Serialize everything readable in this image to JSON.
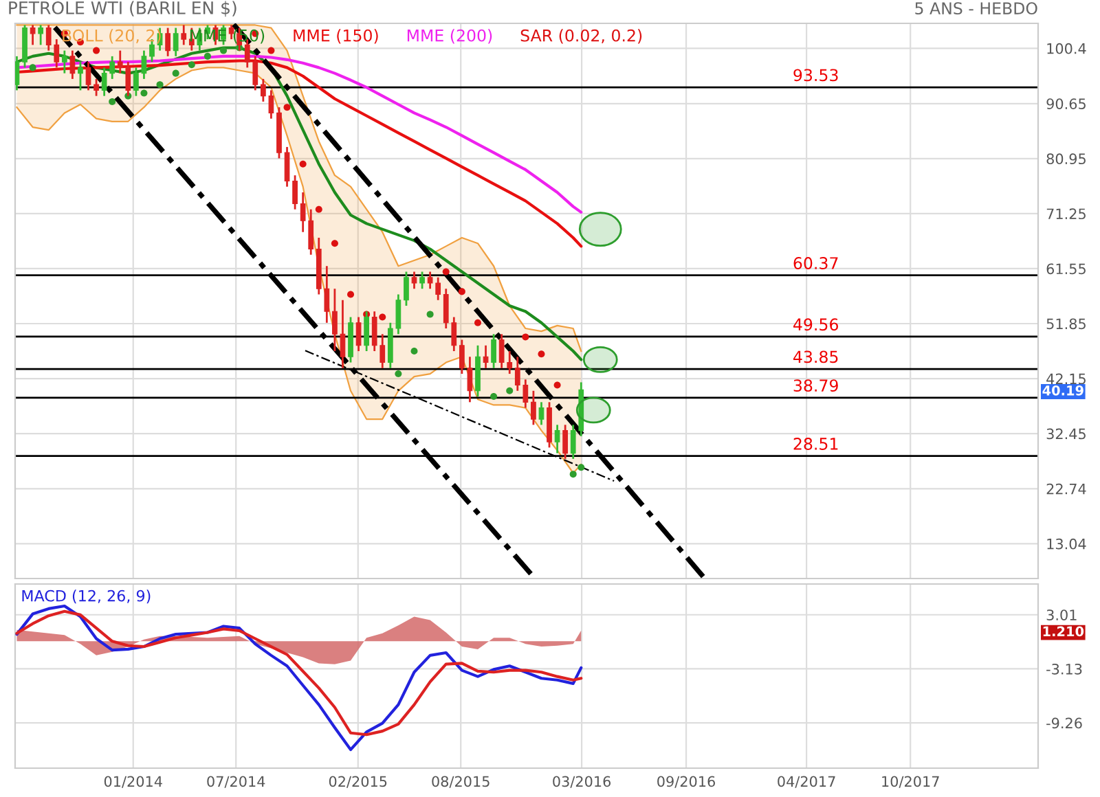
{
  "chart_data": [
    {
      "type": "candlestick",
      "title": "PETROLE WTI (BARIL EN $)",
      "subtitle": "5 ANS - HEBDO",
      "x": [
        "2013-06-10",
        "2013-06-24",
        "2013-07-08",
        "2013-07-22",
        "2013-08-05",
        "2013-08-19",
        "2013-09-02",
        "2013-09-16",
        "2013-09-30",
        "2013-10-14",
        "2013-10-28",
        "2013-11-11",
        "2013-11-25",
        "2013-12-09",
        "2013-12-23",
        "2014-01-06",
        "2014-01-20",
        "2014-02-03",
        "2014-02-17",
        "2014-03-03",
        "2014-03-17",
        "2014-03-31",
        "2014-04-14",
        "2014-04-28",
        "2014-05-12",
        "2014-05-26",
        "2014-06-09",
        "2014-06-23",
        "2014-07-07",
        "2014-07-21",
        "2014-08-04",
        "2014-08-18",
        "2014-09-01",
        "2014-09-15",
        "2014-09-29",
        "2014-10-13",
        "2014-10-27",
        "2014-11-10",
        "2014-11-24",
        "2014-12-08",
        "2014-12-22",
        "2015-01-05",
        "2015-01-19",
        "2015-02-02",
        "2015-02-16",
        "2015-03-02",
        "2015-03-16",
        "2015-03-30",
        "2015-04-13",
        "2015-04-27",
        "2015-05-11",
        "2015-05-25",
        "2015-06-08",
        "2015-06-22",
        "2015-07-06",
        "2015-07-20",
        "2015-08-03",
        "2015-08-17",
        "2015-08-31",
        "2015-09-14",
        "2015-09-28",
        "2015-10-12",
        "2015-10-26",
        "2015-11-09",
        "2015-11-23",
        "2015-12-07",
        "2015-12-21",
        "2016-01-04",
        "2016-01-18",
        "2016-02-01",
        "2016-02-15",
        "2016-02-29"
      ],
      "ohlc": [
        [
          94,
          99,
          93,
          98
        ],
        [
          98,
          104.5,
          97,
          104
        ],
        [
          104,
          104.5,
          101,
          103
        ],
        [
          103,
          104.5,
          101,
          104
        ],
        [
          104,
          104.5,
          100,
          101
        ],
        [
          101,
          102,
          97,
          98
        ],
        [
          98,
          100,
          96,
          99
        ],
        [
          99,
          100,
          95,
          96
        ],
        [
          96,
          98,
          93,
          97
        ],
        [
          97,
          98,
          93,
          94
        ],
        [
          94,
          95,
          92,
          93
        ],
        [
          93,
          97,
          92,
          96
        ],
        [
          96,
          99,
          95,
          98
        ],
        [
          98,
          100,
          96,
          97
        ],
        [
          97,
          98,
          92,
          93
        ],
        [
          93,
          97,
          92,
          96
        ],
        [
          96,
          100,
          95,
          99
        ],
        [
          99,
          102,
          98,
          101
        ],
        [
          101,
          104,
          100,
          103
        ],
        [
          103,
          104,
          99,
          100
        ],
        [
          100,
          104,
          99,
          103
        ],
        [
          103,
          104.5,
          101,
          102
        ],
        [
          102,
          104,
          100,
          101
        ],
        [
          101,
          104,
          100,
          103
        ],
        [
          103,
          104.5,
          102,
          104
        ],
        [
          104,
          104.5,
          101,
          102
        ],
        [
          102,
          104.5,
          101,
          104
        ],
        [
          104,
          104.5,
          102,
          103
        ],
        [
          103,
          104,
          100,
          101
        ],
        [
          101,
          102,
          97,
          98
        ],
        [
          98,
          99,
          93,
          94
        ],
        [
          94,
          95,
          91,
          92
        ],
        [
          92,
          93,
          88,
          89
        ],
        [
          89,
          90,
          81,
          82
        ],
        [
          82,
          83,
          76,
          77
        ],
        [
          77,
          78,
          72,
          73
        ],
        [
          73,
          75,
          68,
          70
        ],
        [
          70,
          72,
          64,
          65
        ],
        [
          65,
          67,
          57,
          58
        ],
        [
          58,
          62,
          52,
          54
        ],
        [
          54,
          58,
          47,
          50
        ],
        [
          50,
          56,
          44,
          46
        ],
        [
          46,
          53,
          45,
          52
        ],
        [
          52,
          53,
          47,
          48
        ],
        [
          48,
          54,
          47,
          53
        ],
        [
          53,
          54,
          47,
          48
        ],
        [
          48,
          50,
          44,
          45
        ],
        [
          45,
          52,
          44,
          51
        ],
        [
          51,
          57,
          50,
          56
        ],
        [
          56,
          61,
          55,
          60
        ],
        [
          60,
          61,
          58,
          59
        ],
        [
          59,
          61,
          58,
          60
        ],
        [
          60,
          61,
          58,
          59
        ],
        [
          59,
          60,
          56,
          57
        ],
        [
          57,
          58,
          51,
          52
        ],
        [
          52,
          53,
          47,
          48
        ],
        [
          48,
          49,
          43,
          44
        ],
        [
          44,
          46,
          38,
          40
        ],
        [
          40,
          48,
          39,
          46
        ],
        [
          46,
          48,
          44,
          45
        ],
        [
          45,
          50,
          44,
          49
        ],
        [
          49,
          50,
          44,
          45
        ],
        [
          45,
          47,
          43,
          44
        ],
        [
          44,
          46,
          40,
          41
        ],
        [
          41,
          42,
          37,
          38
        ],
        [
          38,
          40,
          34,
          35
        ],
        [
          35,
          38,
          34,
          37
        ],
        [
          37,
          38,
          30,
          31
        ],
        [
          31,
          34,
          29,
          33
        ],
        [
          33,
          34,
          28,
          29
        ],
        [
          29,
          34,
          28,
          33
        ],
        [
          33,
          41.5,
          32,
          40.19
        ]
      ],
      "colors": [
        "#33bb33",
        "#33bb33",
        "#dd2222",
        "#33bb33",
        "#dd2222",
        "#dd2222",
        "#33bb33",
        "#dd2222",
        "#33bb33",
        "#dd2222",
        "#dd2222",
        "#33bb33",
        "#33bb33",
        "#dd2222",
        "#dd2222",
        "#33bb33",
        "#33bb33",
        "#33bb33",
        "#33bb33",
        "#dd2222",
        "#33bb33",
        "#dd2222",
        "#dd2222",
        "#33bb33",
        "#33bb33",
        "#dd2222",
        "#33bb33",
        "#dd2222",
        "#dd2222",
        "#dd2222",
        "#dd2222",
        "#dd2222",
        "#dd2222",
        "#dd2222",
        "#dd2222",
        "#dd2222",
        "#dd2222",
        "#dd2222",
        "#dd2222",
        "#dd2222",
        "#dd2222",
        "#dd2222",
        "#33bb33",
        "#dd2222",
        "#33bb33",
        "#dd2222",
        "#dd2222",
        "#33bb33",
        "#33bb33",
        "#33bb33",
        "#dd2222",
        "#33bb33",
        "#dd2222",
        "#dd2222",
        "#dd2222",
        "#dd2222",
        "#dd2222",
        "#dd2222",
        "#33bb33",
        "#dd2222",
        "#33bb33",
        "#dd2222",
        "#dd2222",
        "#dd2222",
        "#dd2222",
        "#dd2222",
        "#33bb33",
        "#dd2222",
        "#33bb33",
        "#dd2222",
        "#33bb33",
        "#33bb33"
      ],
      "series": [
        {
          "name": "BOLL (20, 2)",
          "type": "line",
          "color": "#f0a040",
          "x": [
            "2013-06-10",
            "2013-07-08",
            "2013-08-05",
            "2013-09-02",
            "2013-09-30",
            "2013-10-28",
            "2013-11-25",
            "2013-12-23",
            "2014-01-20",
            "2014-02-17",
            "2014-03-17",
            "2014-04-14",
            "2014-05-12",
            "2014-06-09",
            "2014-07-07",
            "2014-08-04",
            "2014-09-01",
            "2014-09-29",
            "2014-10-27",
            "2014-11-24",
            "2014-12-22",
            "2015-01-19",
            "2015-02-16",
            "2015-03-16",
            "2015-04-13",
            "2015-05-11",
            "2015-06-08",
            "2015-07-06",
            "2015-08-03",
            "2015-08-31",
            "2015-09-28",
            "2015-10-26",
            "2015-11-23",
            "2015-12-21",
            "2016-01-18",
            "2016-02-15",
            "2016-02-29"
          ],
          "values": [
            104.5,
            104.5,
            104.5,
            104.5,
            104.5,
            104.5,
            104.5,
            104.5,
            104.5,
            104.5,
            104.5,
            104.5,
            104.5,
            104.5,
            104.5,
            104.5,
            104,
            100,
            92,
            84,
            78,
            76,
            72,
            68,
            62,
            63,
            64,
            65.5,
            67,
            66,
            62,
            55,
            51,
            50.5,
            51.5,
            51,
            47
          ]
        },
        {
          "type": "line",
          "color": "#f0a040",
          "x": [
            "2013-06-10",
            "2013-07-08",
            "2013-08-05",
            "2013-09-02",
            "2013-09-30",
            "2013-10-28",
            "2013-11-25",
            "2013-12-23",
            "2014-01-20",
            "2014-02-17",
            "2014-03-17",
            "2014-04-14",
            "2014-05-12",
            "2014-06-09",
            "2014-07-07",
            "2014-08-04",
            "2014-09-01",
            "2014-09-29",
            "2014-10-27",
            "2014-11-24",
            "2014-12-22",
            "2015-01-19",
            "2015-02-16",
            "2015-03-16",
            "2015-04-13",
            "2015-05-11",
            "2015-06-08",
            "2015-07-06",
            "2015-08-03",
            "2015-08-31",
            "2015-09-28",
            "2015-10-26",
            "2015-11-23",
            "2015-12-21",
            "2016-01-18",
            "2016-02-15",
            "2016-02-29"
          ],
          "values": [
            90,
            86.5,
            86,
            89,
            90.5,
            88,
            87.5,
            87.5,
            90,
            93,
            95,
            96.5,
            97,
            97,
            96.5,
            96,
            93.5,
            85,
            76,
            62,
            50,
            40,
            35,
            35,
            40,
            42.5,
            43,
            45,
            46,
            38.5,
            37.5,
            37.5,
            37,
            33,
            29.5,
            25.5,
            27
          ]
        },
        {
          "name": "MME (50)",
          "type": "line",
          "color": "#1e8c1e",
          "x": [
            "2013-06-10",
            "2013-07-08",
            "2013-08-05",
            "2013-09-02",
            "2013-09-30",
            "2013-10-28",
            "2013-11-25",
            "2013-12-23",
            "2014-01-20",
            "2014-02-17",
            "2014-03-17",
            "2014-04-14",
            "2014-05-12",
            "2014-06-09",
            "2014-07-07",
            "2014-08-04",
            "2014-09-01",
            "2014-09-29",
            "2014-10-27",
            "2014-11-24",
            "2014-12-22",
            "2015-01-19",
            "2015-02-16",
            "2015-03-16",
            "2015-04-13",
            "2015-05-11",
            "2015-06-08",
            "2015-07-06",
            "2015-08-03",
            "2015-08-31",
            "2015-09-28",
            "2015-10-26",
            "2015-11-23",
            "2015-12-21",
            "2016-01-18",
            "2016-02-15",
            "2016-02-29"
          ],
          "values": [
            98,
            99,
            99.5,
            99,
            98,
            97,
            96.5,
            96,
            96.5,
            97.5,
            98.5,
            99.5,
            100,
            100.5,
            100.5,
            99.5,
            97,
            92,
            86,
            80,
            75,
            71,
            69.5,
            68.5,
            67.5,
            66.5,
            65,
            63,
            61,
            59,
            57,
            55,
            54,
            52,
            49.5,
            47,
            45.5
          ]
        },
        {
          "name": "MME (150)",
          "type": "line",
          "color": "#e81010",
          "x": [
            "2013-06-10",
            "2013-07-08",
            "2013-08-05",
            "2013-09-02",
            "2013-09-30",
            "2013-10-28",
            "2013-11-25",
            "2013-12-23",
            "2014-01-20",
            "2014-02-17",
            "2014-03-17",
            "2014-04-14",
            "2014-05-12",
            "2014-06-09",
            "2014-07-07",
            "2014-08-04",
            "2014-09-01",
            "2014-09-29",
            "2014-10-27",
            "2014-11-24",
            "2014-12-22",
            "2015-01-19",
            "2015-02-16",
            "2015-03-16",
            "2015-04-13",
            "2015-05-11",
            "2015-06-08",
            "2015-07-06",
            "2015-08-03",
            "2015-08-31",
            "2015-09-28",
            "2015-10-26",
            "2015-11-23",
            "2015-12-21",
            "2016-01-18",
            "2016-02-15",
            "2016-02-29"
          ],
          "values": [
            96.2,
            96.4,
            96.6,
            96.8,
            96.9,
            97,
            97.1,
            97.2,
            97.3,
            97.4,
            97.6,
            97.8,
            98,
            98.1,
            98.2,
            98.2,
            97.8,
            97,
            95.5,
            93.5,
            91.5,
            90,
            88.5,
            87,
            85.5,
            84,
            82.5,
            81,
            79.5,
            78,
            76.5,
            75,
            73.5,
            71.5,
            69.5,
            67,
            65.5
          ]
        },
        {
          "name": "MME (200)",
          "type": "line",
          "color": "#ee22ee",
          "x": [
            "2013-06-10",
            "2013-07-08",
            "2013-08-05",
            "2013-09-02",
            "2013-09-30",
            "2013-10-28",
            "2013-11-25",
            "2013-12-23",
            "2014-01-20",
            "2014-02-17",
            "2014-03-17",
            "2014-04-14",
            "2014-05-12",
            "2014-06-09",
            "2014-07-07",
            "2014-08-04",
            "2014-09-01",
            "2014-09-29",
            "2014-10-27",
            "2014-11-24",
            "2014-12-22",
            "2015-01-19",
            "2015-02-16",
            "2015-03-16",
            "2015-04-13",
            "2015-05-11",
            "2015-06-08",
            "2015-07-06",
            "2015-08-03",
            "2015-08-31",
            "2015-09-28",
            "2015-10-26",
            "2015-11-23",
            "2015-12-21",
            "2016-01-18",
            "2016-02-15",
            "2016-02-29"
          ],
          "values": [
            97,
            97.2,
            97.4,
            97.6,
            97.8,
            97.9,
            98,
            98,
            98.1,
            98.2,
            98.4,
            98.6,
            98.8,
            99,
            99,
            99,
            98.8,
            98.4,
            97.8,
            97,
            96,
            94.8,
            93.5,
            92,
            90.5,
            89,
            87.8,
            86.5,
            85,
            83.5,
            82,
            80.5,
            79,
            77,
            75,
            72.5,
            71.5
          ]
        },
        {
          "name": "SAR (0.02, 0.2)",
          "type": "scatter",
          "color": "#dd1111",
          "marker": "circle",
          "x": [
            "2013-07-08",
            "2013-09-02",
            "2013-09-30",
            "2013-10-28",
            "2013-11-25",
            "2013-12-23",
            "2014-01-20",
            "2014-02-17",
            "2014-03-17",
            "2014-04-14",
            "2014-05-12",
            "2014-06-09",
            "2014-07-07",
            "2014-08-04",
            "2014-09-01",
            "2014-09-29",
            "2014-10-27",
            "2014-11-24",
            "2014-12-22",
            "2015-01-19",
            "2015-02-16",
            "2015-03-16",
            "2015-04-13",
            "2015-05-11",
            "2015-06-08",
            "2015-07-06",
            "2015-08-03",
            "2015-08-31",
            "2015-09-28",
            "2015-10-26",
            "2015-11-23",
            "2015-12-21",
            "2016-01-18",
            "2016-02-15",
            "2016-02-29"
          ],
          "values": [
            97,
            103,
            101.5,
            100,
            91,
            92,
            92.5,
            94,
            96,
            97.5,
            99,
            100,
            100.5,
            103,
            100,
            90,
            80,
            72,
            66,
            57,
            53.5,
            53,
            43,
            47,
            53.5,
            61,
            57.5,
            52,
            39,
            40,
            49.5,
            46.5,
            41,
            25.3,
            26.5
          ],
          "colors": [
            "#2e9e2e",
            "#dd1111",
            "#dd1111",
            "#dd1111",
            "#2e9e2e",
            "#2e9e2e",
            "#2e9e2e",
            "#2e9e2e",
            "#2e9e2e",
            "#2e9e2e",
            "#2e9e2e",
            "#2e9e2e",
            "#2e9e2e",
            "#dd1111",
            "#dd1111",
            "#dd1111",
            "#dd1111",
            "#dd1111",
            "#dd1111",
            "#dd1111",
            "#dd1111",
            "#dd1111",
            "#2e9e2e",
            "#2e9e2e",
            "#2e9e2e",
            "#dd1111",
            "#dd1111",
            "#dd1111",
            "#2e9e2e",
            "#2e9e2e",
            "#dd1111",
            "#dd1111",
            "#dd1111",
            "#2e9e2e",
            "#2e9e2e"
          ]
        },
        {
          "type": "line",
          "color": "#000000",
          "line_style": "dashed",
          "x": [
            "2013-08-16",
            "2015-12-07"
          ],
          "values": [
            104.1,
            7.2
          ]
        },
        {
          "type": "line",
          "color": "#000000",
          "line_style": "dashed",
          "x": [
            "2014-06-27",
            "2016-10-03"
          ],
          "values": [
            104.6,
            7.0
          ]
        },
        {
          "type": "line",
          "color": "#000000",
          "line_style": "dotted",
          "x": [
            "2014-10-31",
            "2016-04-27"
          ],
          "values": [
            47.1,
            24.1
          ]
        }
      ],
      "ref_lines": [
        {
          "axis": "y",
          "value": 93.53,
          "label": "93.53",
          "color": "#000000"
        },
        {
          "axis": "y",
          "value": 60.37,
          "label": "60.37",
          "color": "#000000"
        },
        {
          "axis": "y",
          "value": 49.56,
          "label": "49.56",
          "color": "#000000"
        },
        {
          "axis": "y",
          "value": 43.85,
          "label": "43.85",
          "color": "#000000"
        },
        {
          "axis": "y",
          "value": 38.79,
          "label": "38.79",
          "color": "#000000"
        },
        {
          "axis": "y",
          "value": 28.51,
          "label": "28.51",
          "color": "#000000"
        }
      ],
      "annotations": [
        "40.19"
      ],
      "xlim": [
        "2013-06-07",
        "2018-05-14"
      ],
      "xticks": [
        {
          "value": "2014-01",
          "label": null
        },
        {
          "value": "2014-07",
          "label": null
        },
        {
          "value": "2015-02",
          "label": null
        },
        {
          "value": "2015-08",
          "label": null
        },
        {
          "value": "2016-03",
          "label": null
        },
        {
          "value": "2016-09",
          "label": null
        },
        {
          "value": "2017-04",
          "label": null
        },
        {
          "value": "2017-10",
          "label": null
        }
      ],
      "ylim": [
        6.9,
        104.8
      ],
      "yticks": [
        13.04,
        22.74,
        32.45,
        42.15,
        51.85,
        61.55,
        71.25,
        80.95,
        90.65,
        100.4
      ],
      "tick_labels": "y",
      "grid": true,
      "legend": "top left"
    },
    {
      "type": "line",
      "title": "MACD (12, 26, 9)",
      "series": [
        {
          "type": "area",
          "color": "#d46a6a",
          "x": [
            "2013-06-10",
            "2013-07-08",
            "2013-08-05",
            "2013-09-02",
            "2013-09-30",
            "2013-10-28",
            "2013-11-25",
            "2013-12-23",
            "2014-01-20",
            "2014-02-17",
            "2014-03-17",
            "2014-04-14",
            "2014-05-12",
            "2014-06-09",
            "2014-07-07",
            "2014-08-04",
            "2014-09-01",
            "2014-09-29",
            "2014-10-27",
            "2014-11-24",
            "2014-12-22",
            "2015-01-19",
            "2015-02-16",
            "2015-03-16",
            "2015-04-13",
            "2015-05-11",
            "2015-06-08",
            "2015-07-06",
            "2015-08-03",
            "2015-08-31",
            "2015-09-28",
            "2015-10-26",
            "2015-11-23",
            "2015-12-21",
            "2016-01-18",
            "2016-02-15",
            "2016-02-29"
          ],
          "values": [
            1.3,
            1.1,
            0.9,
            0.7,
            -0.3,
            -1.6,
            -1.2,
            -0.6,
            0.2,
            0.6,
            0.6,
            0.5,
            0.4,
            0.5,
            0.6,
            -0.3,
            -0.8,
            -1.3,
            -1.8,
            -2.5,
            -2.6,
            -2.2,
            0.4,
            0.9,
            1.8,
            2.8,
            2.4,
            1.0,
            -0.6,
            -0.9,
            0.4,
            0.4,
            -0.3,
            -0.6,
            -0.5,
            -0.3,
            1.21
          ]
        },
        {
          "type": "line",
          "color": "#2222dd",
          "x": [
            "2013-06-10",
            "2013-07-08",
            "2013-08-05",
            "2013-09-02",
            "2013-09-30",
            "2013-10-28",
            "2013-11-25",
            "2013-12-23",
            "2014-01-20",
            "2014-02-17",
            "2014-03-17",
            "2014-04-14",
            "2014-05-12",
            "2014-06-09",
            "2014-07-07",
            "2014-08-04",
            "2014-09-01",
            "2014-09-29",
            "2014-10-27",
            "2014-11-24",
            "2014-12-22",
            "2015-01-19",
            "2015-02-16",
            "2015-03-16",
            "2015-04-13",
            "2015-05-11",
            "2015-06-08",
            "2015-07-06",
            "2015-08-03",
            "2015-08-31",
            "2015-09-28",
            "2015-10-26",
            "2015-11-23",
            "2015-12-21",
            "2016-01-18",
            "2016-02-15",
            "2016-02-29"
          ],
          "values": [
            0.8,
            3.1,
            3.7,
            4.0,
            2.8,
            0.3,
            -1.0,
            -0.9,
            -0.6,
            0.3,
            0.8,
            0.9,
            1.0,
            1.7,
            1.5,
            -0.3,
            -1.6,
            -2.8,
            -5.0,
            -7.2,
            -9.8,
            -12.3,
            -10.3,
            -9.3,
            -7.2,
            -3.5,
            -1.6,
            -1.3,
            -3.3,
            -4.0,
            -3.2,
            -2.8,
            -3.5,
            -4.2,
            -4.4,
            -4.8,
            -3.0
          ]
        },
        {
          "type": "line",
          "color": "#dd2222",
          "x": [
            "2013-06-10",
            "2013-07-08",
            "2013-08-05",
            "2013-09-02",
            "2013-09-30",
            "2013-10-28",
            "2013-11-25",
            "2013-12-23",
            "2014-01-20",
            "2014-02-17",
            "2014-03-17",
            "2014-04-14",
            "2014-05-12",
            "2014-06-09",
            "2014-07-07",
            "2014-08-04",
            "2014-09-01",
            "2014-09-29",
            "2014-10-27",
            "2014-11-24",
            "2014-12-22",
            "2015-01-19",
            "2015-02-16",
            "2015-03-16",
            "2015-04-13",
            "2015-05-11",
            "2015-06-08",
            "2015-07-06",
            "2015-08-03",
            "2015-08-31",
            "2015-09-28",
            "2015-10-26",
            "2015-11-23",
            "2015-12-21",
            "2016-01-18",
            "2016-02-15",
            "2016-02-29"
          ],
          "values": [
            0.9,
            2.0,
            2.9,
            3.4,
            3.0,
            1.5,
            0.0,
            -0.5,
            -0.6,
            -0.1,
            0.4,
            0.7,
            1.0,
            1.4,
            1.2,
            0.3,
            -0.6,
            -1.5,
            -3.4,
            -5.3,
            -7.5,
            -10.4,
            -10.6,
            -10.2,
            -9.4,
            -7.2,
            -4.6,
            -2.6,
            -2.5,
            -3.4,
            -3.5,
            -3.3,
            -3.3,
            -3.5,
            -4.0,
            -4.4,
            -4.2
          ]
        }
      ],
      "annotations": [
        "1.210"
      ],
      "xlim": [
        "2013-06-07",
        "2018-05-14"
      ],
      "xticks": [
        {
          "value": "2014-01",
          "label": "01/2014"
        },
        {
          "value": "2014-07",
          "label": "07/2014"
        },
        {
          "value": "2015-02",
          "label": "02/2015"
        },
        {
          "value": "2015-08",
          "label": "08/2015"
        },
        {
          "value": "2016-03",
          "label": "03/2016"
        },
        {
          "value": "2016-09",
          "label": "09/2016"
        },
        {
          "value": "2017-04",
          "label": "04/2017"
        },
        {
          "value": "2017-10",
          "label": "10/2017"
        }
      ],
      "ylim": [
        -14.4,
        6.5
      ],
      "yticks": [
        -9.26,
        -3.13,
        3.01
      ],
      "grid": true
    }
  ]
}
